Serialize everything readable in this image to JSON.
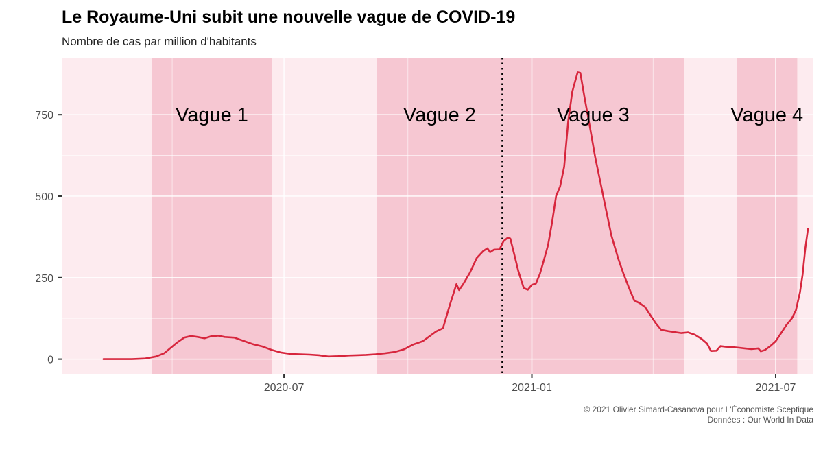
{
  "chart_data": {
    "type": "line",
    "title": "Le Royaume-Uni subit une nouvelle vague de COVID-19",
    "subtitle": "Nombre de cas par million d'habitants",
    "xlabel": "",
    "ylabel": "",
    "x_axis": {
      "type": "date",
      "range": [
        "2020-01-18",
        "2021-07-29"
      ],
      "tick_labels": [
        "2020-07",
        "2021-01",
        "2021-07"
      ],
      "tick_dates": [
        "2020-07-01",
        "2021-01-01",
        "2021-07-01"
      ]
    },
    "y_axis": {
      "range": [
        -45,
        925
      ],
      "ticks": [
        0,
        250,
        500,
        750
      ],
      "tick_labels": [
        "0",
        "250",
        "500",
        "750"
      ]
    },
    "grid": true,
    "legend": "none",
    "colors": {
      "line": "#d7263d",
      "panel": "#fdebef",
      "wave_band": "#f6c7d2",
      "gridline": "#ffffff",
      "vline": "#000000",
      "axis_text": "#4d4d4d"
    },
    "waves": [
      {
        "label": "Vague 1",
        "start": "2020-03-25",
        "end": "2020-06-22",
        "label_y": 750
      },
      {
        "label": "Vague 2",
        "start": "2020-09-08",
        "end": "2020-12-10",
        "label_y": 750
      },
      {
        "label": "Vague 3",
        "start": "2020-12-10",
        "end": "2021-04-24",
        "label_y": 750
      },
      {
        "label": "Vague 4",
        "start": "2021-06-02",
        "end": "2021-07-17",
        "label_y": 750
      }
    ],
    "vline": {
      "date": "2020-12-10",
      "style": "dotted"
    },
    "series": [
      {
        "values": [
          [
            "2020-02-18",
            0
          ],
          [
            "2020-03-10",
            0
          ],
          [
            "2020-03-20",
            2
          ],
          [
            "2020-03-28",
            8
          ],
          [
            "2020-04-03",
            18
          ],
          [
            "2020-04-08",
            35
          ],
          [
            "2020-04-13",
            52
          ],
          [
            "2020-04-18",
            66
          ],
          [
            "2020-04-23",
            71
          ],
          [
            "2020-04-28",
            68
          ],
          [
            "2020-05-03",
            64
          ],
          [
            "2020-05-08",
            70
          ],
          [
            "2020-05-13",
            72
          ],
          [
            "2020-05-18",
            68
          ],
          [
            "2020-05-25",
            66
          ],
          [
            "2020-06-01",
            56
          ],
          [
            "2020-06-08",
            46
          ],
          [
            "2020-06-15",
            39
          ],
          [
            "2020-06-22",
            28
          ],
          [
            "2020-06-29",
            20
          ],
          [
            "2020-07-06",
            16
          ],
          [
            "2020-07-13",
            15
          ],
          [
            "2020-07-20",
            14
          ],
          [
            "2020-07-27",
            12
          ],
          [
            "2020-08-03",
            8
          ],
          [
            "2020-08-10",
            9
          ],
          [
            "2020-08-17",
            11
          ],
          [
            "2020-08-24",
            12
          ],
          [
            "2020-08-31",
            13
          ],
          [
            "2020-09-07",
            15
          ],
          [
            "2020-09-14",
            18
          ],
          [
            "2020-09-21",
            22
          ],
          [
            "2020-09-28",
            30
          ],
          [
            "2020-10-05",
            45
          ],
          [
            "2020-10-12",
            55
          ],
          [
            "2020-10-17",
            70
          ],
          [
            "2020-10-22",
            85
          ],
          [
            "2020-10-27",
            95
          ],
          [
            "2020-11-01",
            165
          ],
          [
            "2020-11-06",
            230
          ],
          [
            "2020-11-08",
            212
          ],
          [
            "2020-11-11",
            230
          ],
          [
            "2020-11-16",
            265
          ],
          [
            "2020-11-21",
            310
          ],
          [
            "2020-11-26",
            332
          ],
          [
            "2020-11-29",
            340
          ],
          [
            "2020-12-01",
            328
          ],
          [
            "2020-12-04",
            336
          ],
          [
            "2020-12-08",
            337
          ],
          [
            "2020-12-11",
            362
          ],
          [
            "2020-12-14",
            372
          ],
          [
            "2020-12-16",
            370
          ],
          [
            "2020-12-19",
            320
          ],
          [
            "2020-12-22",
            270
          ],
          [
            "2020-12-26",
            218
          ],
          [
            "2020-12-29",
            213
          ],
          [
            "2021-01-01",
            228
          ],
          [
            "2021-01-04",
            232
          ],
          [
            "2021-01-07",
            262
          ],
          [
            "2021-01-10",
            305
          ],
          [
            "2021-01-13",
            350
          ],
          [
            "2021-01-16",
            420
          ],
          [
            "2021-01-19",
            500
          ],
          [
            "2021-01-22",
            530
          ],
          [
            "2021-01-25",
            590
          ],
          [
            "2021-01-28",
            730
          ],
          [
            "2021-01-31",
            820
          ],
          [
            "2021-02-02",
            850
          ],
          [
            "2021-02-04",
            880
          ],
          [
            "2021-02-06",
            878
          ],
          [
            "2021-02-09",
            805
          ],
          [
            "2021-02-13",
            715
          ],
          [
            "2021-02-17",
            620
          ],
          [
            "2021-02-21",
            540
          ],
          [
            "2021-02-25",
            460
          ],
          [
            "2021-03-01",
            380
          ],
          [
            "2021-03-06",
            310
          ],
          [
            "2021-03-10",
            262
          ],
          [
            "2021-03-14",
            220
          ],
          [
            "2021-03-18",
            180
          ],
          [
            "2021-03-22",
            172
          ],
          [
            "2021-03-26",
            160
          ],
          [
            "2021-03-30",
            135
          ],
          [
            "2021-04-03",
            110
          ],
          [
            "2021-04-07",
            90
          ],
          [
            "2021-04-12",
            86
          ],
          [
            "2021-04-17",
            83
          ],
          [
            "2021-04-22",
            80
          ],
          [
            "2021-04-27",
            82
          ],
          [
            "2021-05-02",
            75
          ],
          [
            "2021-05-07",
            62
          ],
          [
            "2021-05-11",
            48
          ],
          [
            "2021-05-14",
            25
          ],
          [
            "2021-05-18",
            26
          ],
          [
            "2021-05-21",
            40
          ],
          [
            "2021-05-25",
            38
          ],
          [
            "2021-05-30",
            37
          ],
          [
            "2021-06-04",
            35
          ],
          [
            "2021-06-08",
            33
          ],
          [
            "2021-06-13",
            31
          ],
          [
            "2021-06-18",
            33
          ],
          [
            "2021-06-20",
            24
          ],
          [
            "2021-06-23",
            28
          ],
          [
            "2021-06-27",
            40
          ],
          [
            "2021-07-01",
            55
          ],
          [
            "2021-07-05",
            80
          ],
          [
            "2021-07-09",
            105
          ],
          [
            "2021-07-13",
            125
          ],
          [
            "2021-07-16",
            150
          ],
          [
            "2021-07-19",
            205
          ],
          [
            "2021-07-21",
            260
          ],
          [
            "2021-07-23",
            340
          ],
          [
            "2021-07-25",
            400
          ]
        ]
      }
    ]
  },
  "caption": {
    "line1": "© 2021 Olivier Simard-Casanova pour L'Économiste Sceptique",
    "line2": "Données : Our World In Data"
  }
}
